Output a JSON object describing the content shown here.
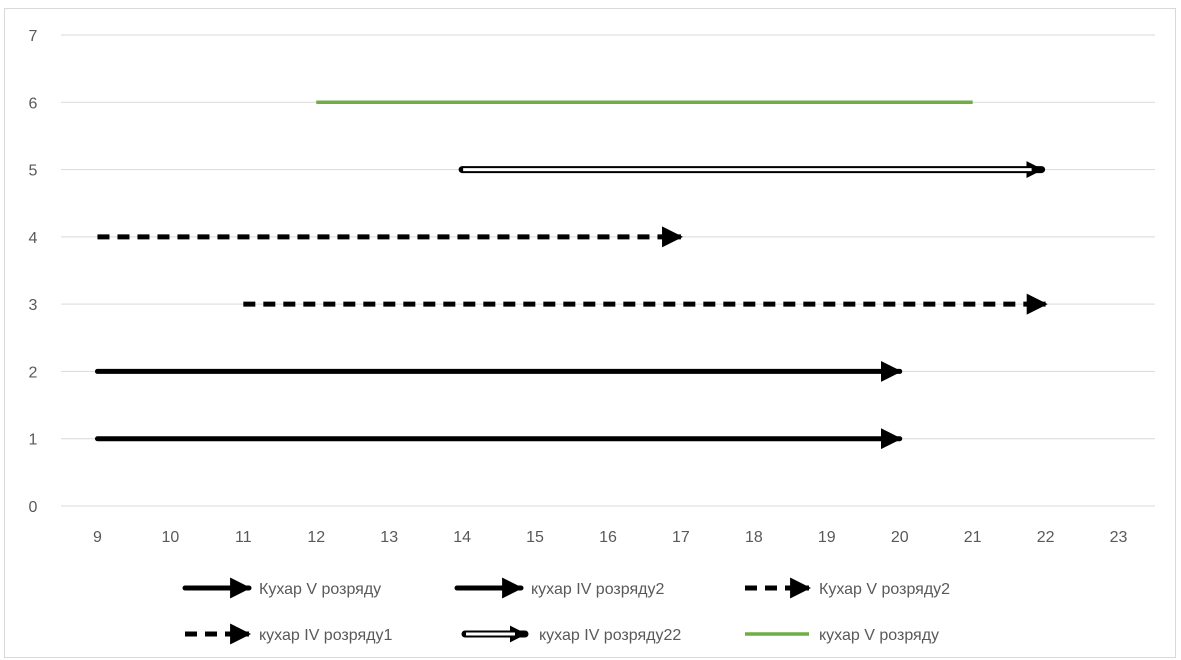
{
  "chart_data": {
    "type": "line",
    "title": "",
    "xlabel": "",
    "ylabel": "",
    "xlim": [
      9,
      23
    ],
    "ylim": [
      0,
      7
    ],
    "x_ticks": [
      9,
      10,
      11,
      12,
      13,
      14,
      15,
      16,
      17,
      18,
      19,
      20,
      21,
      22,
      23
    ],
    "y_ticks": [
      0,
      1,
      2,
      3,
      4,
      5,
      6,
      7
    ],
    "grid": "horizontal",
    "legend_position": "bottom",
    "series": [
      {
        "name": "Кухар V  розряду",
        "x": [
          9,
          20
        ],
        "y": [
          1,
          1
        ],
        "style": "solid-arrow",
        "color": "#000000"
      },
      {
        "name": "кухар IV розряду2",
        "x": [
          9,
          20
        ],
        "y": [
          2,
          2
        ],
        "style": "solid-arrow",
        "color": "#000000"
      },
      {
        "name": "Кухар V  розряду2",
        "x": [
          11,
          22
        ],
        "y": [
          3,
          3
        ],
        "style": "dashed-arrow",
        "color": "#000000"
      },
      {
        "name": "кухар IV розряду1",
        "x": [
          9,
          17
        ],
        "y": [
          4,
          4
        ],
        "style": "dashed-arrow",
        "color": "#000000"
      },
      {
        "name": "кухар IV розряду22",
        "x": [
          14,
          22
        ],
        "y": [
          5,
          5
        ],
        "style": "double-arrow",
        "color": "#000000"
      },
      {
        "name": "кухар V розряду",
        "x": [
          12,
          21
        ],
        "y": [
          6,
          6
        ],
        "style": "solid",
        "color": "#70ad47"
      }
    ]
  }
}
